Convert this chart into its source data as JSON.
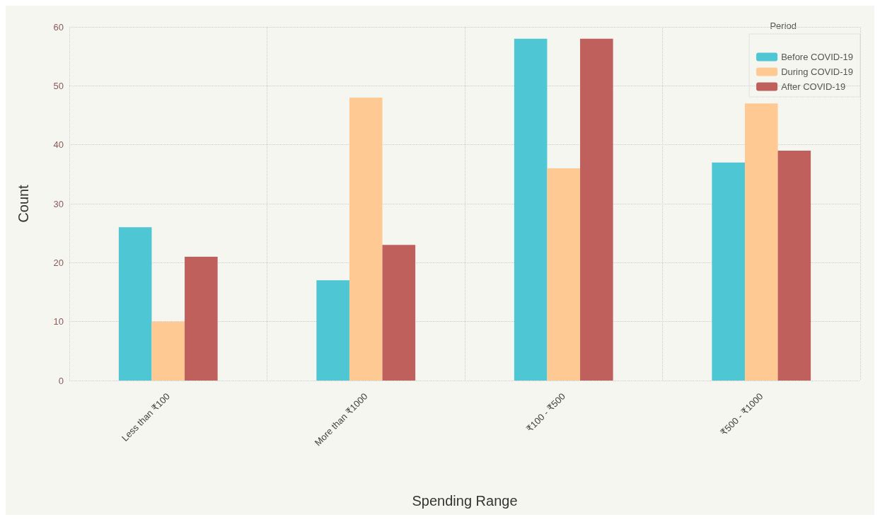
{
  "chart_data": {
    "type": "bar",
    "xlabel": "Spending Range",
    "ylabel": "Count",
    "legend_title": "Period",
    "categories": [
      "Less than ₹100",
      "More than ₹1000",
      "₹100 - ₹500",
      "₹500 - ₹1000"
    ],
    "series": [
      {
        "name": "Before COVID-19",
        "color": "#4fc6d3",
        "values": [
          26,
          17,
          58,
          37
        ]
      },
      {
        "name": "During COVID-19",
        "color": "#ffc994",
        "values": [
          10,
          48,
          36,
          47
        ]
      },
      {
        "name": "After COVID-19",
        "color": "#c0605c",
        "values": [
          21,
          23,
          58,
          39
        ]
      }
    ],
    "ylim": [
      0,
      60
    ],
    "yticks": [
      0,
      10,
      20,
      30,
      40,
      50,
      60
    ],
    "grid": true,
    "legend": "top right"
  }
}
